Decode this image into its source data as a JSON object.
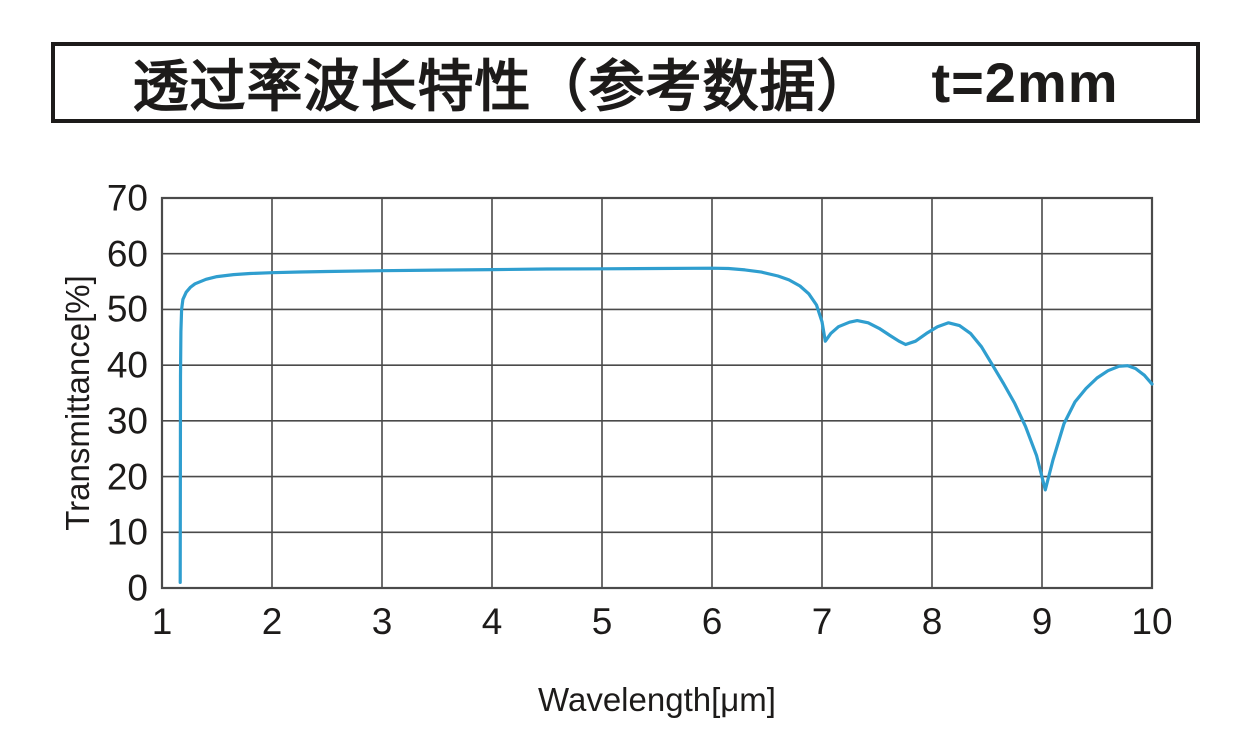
{
  "title": {
    "main": "透过率波长特性（参考数据）",
    "thickness": "t=2mm"
  },
  "colors": {
    "curve": "#2f9ecf",
    "grid": "#4a4a4a",
    "text": "#1d1b1a",
    "background": "#ffffff"
  },
  "chart_data": {
    "type": "line",
    "title": "透过率波长特性（参考数据） t=2mm",
    "xlabel": "Wavelength[μm]",
    "ylabel": "Transmittance[%]",
    "xlim": [
      1,
      10
    ],
    "ylim": [
      0,
      70
    ],
    "xticks": [
      1,
      2,
      3,
      4,
      5,
      6,
      7,
      8,
      9,
      10
    ],
    "yticks": [
      0,
      10,
      20,
      30,
      40,
      50,
      60,
      70
    ],
    "grid": true,
    "legend": "none",
    "line_color": "#2f9ecf",
    "series": [
      {
        "name": "transmittance",
        "points": [
          [
            1.165,
            1
          ],
          [
            1.166,
            12
          ],
          [
            1.167,
            25
          ],
          [
            1.168,
            38
          ],
          [
            1.172,
            46
          ],
          [
            1.178,
            50
          ],
          [
            1.19,
            51.8
          ],
          [
            1.22,
            53.1
          ],
          [
            1.26,
            54.0
          ],
          [
            1.3,
            54.6
          ],
          [
            1.4,
            55.4
          ],
          [
            1.5,
            55.9
          ],
          [
            1.65,
            56.25
          ],
          [
            1.8,
            56.45
          ],
          [
            2.0,
            56.6
          ],
          [
            2.25,
            56.72
          ],
          [
            2.5,
            56.8
          ],
          [
            3.0,
            56.95
          ],
          [
            3.5,
            57.05
          ],
          [
            4.0,
            57.15
          ],
          [
            4.5,
            57.25
          ],
          [
            5.0,
            57.3
          ],
          [
            5.5,
            57.35
          ],
          [
            6.0,
            57.4
          ],
          [
            6.15,
            57.35
          ],
          [
            6.3,
            57.1
          ],
          [
            6.45,
            56.7
          ],
          [
            6.6,
            56.0
          ],
          [
            6.7,
            55.3
          ],
          [
            6.8,
            54.2
          ],
          [
            6.88,
            52.8
          ],
          [
            6.95,
            50.8
          ],
          [
            7.0,
            47.8
          ],
          [
            7.03,
            44.3
          ],
          [
            7.08,
            45.7
          ],
          [
            7.15,
            46.9
          ],
          [
            7.25,
            47.7
          ],
          [
            7.32,
            48.0
          ],
          [
            7.42,
            47.6
          ],
          [
            7.52,
            46.6
          ],
          [
            7.62,
            45.3
          ],
          [
            7.7,
            44.3
          ],
          [
            7.76,
            43.7
          ],
          [
            7.85,
            44.3
          ],
          [
            7.95,
            45.7
          ],
          [
            8.05,
            46.9
          ],
          [
            8.15,
            47.6
          ],
          [
            8.25,
            47.1
          ],
          [
            8.35,
            45.7
          ],
          [
            8.45,
            43.3
          ],
          [
            8.55,
            40.0
          ],
          [
            8.65,
            36.7
          ],
          [
            8.75,
            33.2
          ],
          [
            8.85,
            29.0
          ],
          [
            8.95,
            23.8
          ],
          [
            9.03,
            17.6
          ],
          [
            9.1,
            23.0
          ],
          [
            9.2,
            29.5
          ],
          [
            9.3,
            33.4
          ],
          [
            9.4,
            35.8
          ],
          [
            9.5,
            37.7
          ],
          [
            9.6,
            39.0
          ],
          [
            9.7,
            39.8
          ],
          [
            9.78,
            39.9
          ],
          [
            9.85,
            39.4
          ],
          [
            9.93,
            38.2
          ],
          [
            10.0,
            36.6
          ]
        ]
      }
    ]
  }
}
